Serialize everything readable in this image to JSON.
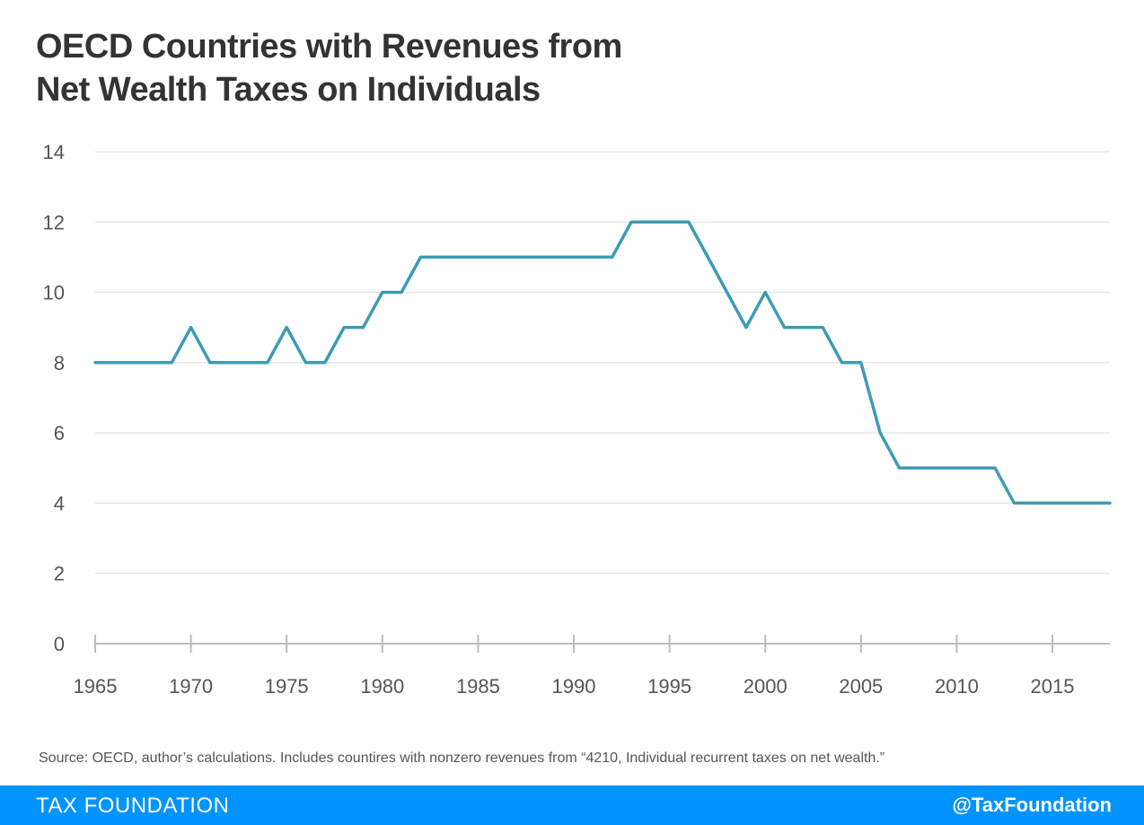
{
  "header": {
    "title_line1": "OECD Countries with Revenues from",
    "title_line2": "Net Wealth Taxes on Individuals"
  },
  "chart_data": {
    "type": "line",
    "title": "OECD Countries with Revenues from Net Wealth Taxes on Individuals",
    "xlabel": "",
    "ylabel": "",
    "xlim": [
      1965,
      2018
    ],
    "ylim": [
      0,
      14
    ],
    "x_ticks": [
      1965,
      1970,
      1975,
      1980,
      1985,
      1990,
      1995,
      2000,
      2005,
      2010,
      2015
    ],
    "y_ticks": [
      0,
      2,
      4,
      6,
      8,
      10,
      12,
      14
    ],
    "grid": "horizontal",
    "line_color": "#3d9bb4",
    "series": [
      {
        "x": [
          1965,
          1966,
          1967,
          1968,
          1969,
          1970,
          1971,
          1972,
          1973,
          1974,
          1975,
          1976,
          1977,
          1978,
          1979,
          1980,
          1981,
          1982,
          1983,
          1984,
          1985,
          1986,
          1987,
          1988,
          1989,
          1990,
          1991,
          1992,
          1993,
          1994,
          1995,
          1996,
          1997,
          1998,
          1999,
          2000,
          2001,
          2002,
          2003,
          2004,
          2005,
          2006,
          2007,
          2008,
          2009,
          2010,
          2011,
          2012,
          2013,
          2014,
          2015,
          2016,
          2017,
          2018
        ],
        "values": [
          8,
          8,
          8,
          8,
          8,
          9,
          8,
          8,
          8,
          8,
          9,
          8,
          8,
          9,
          9,
          10,
          10,
          11,
          11,
          11,
          11,
          11,
          11,
          11,
          11,
          11,
          11,
          11,
          12,
          12,
          12,
          12,
          11,
          10,
          9,
          10,
          9,
          9,
          9,
          8,
          8,
          6,
          5,
          5,
          5,
          5,
          5,
          5,
          4,
          4,
          4,
          4,
          4,
          4
        ]
      }
    ]
  },
  "source": "Source: OECD, author’s calculations. Includes countires with nonzero revenues from “4210, Individual recurrent taxes on net wealth.”",
  "footer": {
    "brand": "TAX FOUNDATION",
    "handle": "@TaxFoundation",
    "background_color": "#0094ff"
  }
}
